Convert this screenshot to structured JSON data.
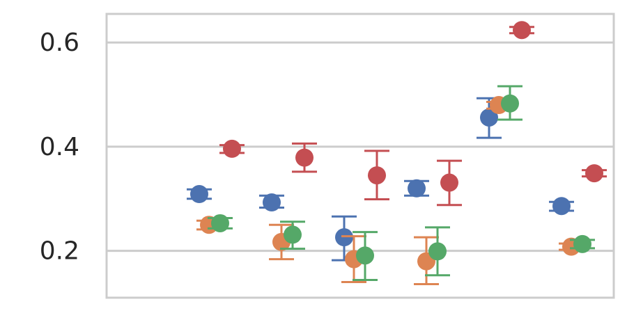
{
  "chart_data": {
    "type": "scatter",
    "subtype": "point-with-error-bars",
    "title": "",
    "xlabel": "",
    "ylabel": "",
    "ylim": [
      0.11,
      0.655
    ],
    "yticks": [
      0.2,
      0.4,
      0.6
    ],
    "ytick_labels": [
      "0.2",
      "0.4",
      "0.6"
    ],
    "grid": "horizontal",
    "legend": "none",
    "groups": 6,
    "series": [
      {
        "color": "#4c72b0",
        "points": [
          {
            "group": 0,
            "y": 0.309,
            "low": 0.3,
            "high": 0.318
          },
          {
            "group": 1,
            "y": 0.293,
            "low": 0.283,
            "high": 0.306
          },
          {
            "group": 2,
            "y": 0.226,
            "low": 0.182,
            "high": 0.266
          },
          {
            "group": 3,
            "y": 0.32,
            "low": 0.306,
            "high": 0.334
          },
          {
            "group": 4,
            "y": 0.456,
            "low": 0.417,
            "high": 0.493
          },
          {
            "group": 5,
            "y": 0.286,
            "low": 0.277,
            "high": 0.294
          }
        ]
      },
      {
        "color": "#dd8452",
        "points": [
          {
            "group": 0,
            "y": 0.25,
            "low": 0.241,
            "high": 0.258
          },
          {
            "group": 1,
            "y": 0.217,
            "low": 0.184,
            "high": 0.25
          },
          {
            "group": 2,
            "y": 0.184,
            "low": 0.14,
            "high": 0.228
          },
          {
            "group": 3,
            "y": 0.18,
            "low": 0.136,
            "high": 0.226
          },
          {
            "group": 4,
            "y": 0.48,
            "low": 0.473,
            "high": 0.486
          },
          {
            "group": 5,
            "y": 0.208,
            "low": 0.202,
            "high": 0.214
          }
        ]
      },
      {
        "color": "#55a868",
        "points": [
          {
            "group": 0,
            "y": 0.253,
            "low": 0.243,
            "high": 0.263
          },
          {
            "group": 1,
            "y": 0.231,
            "low": 0.204,
            "high": 0.256
          },
          {
            "group": 2,
            "y": 0.191,
            "low": 0.144,
            "high": 0.236
          },
          {
            "group": 3,
            "y": 0.199,
            "low": 0.153,
            "high": 0.245
          },
          {
            "group": 4,
            "y": 0.483,
            "low": 0.452,
            "high": 0.516
          },
          {
            "group": 5,
            "y": 0.213,
            "low": 0.205,
            "high": 0.221
          }
        ]
      },
      {
        "color": "#c44e52",
        "points": [
          {
            "group": 0,
            "y": 0.396,
            "low": 0.388,
            "high": 0.403
          },
          {
            "group": 1,
            "y": 0.379,
            "low": 0.352,
            "high": 0.406
          },
          {
            "group": 2,
            "y": 0.345,
            "low": 0.299,
            "high": 0.392
          },
          {
            "group": 3,
            "y": 0.331,
            "low": 0.288,
            "high": 0.373
          },
          {
            "group": 4,
            "y": 0.624,
            "low": 0.618,
            "high": 0.63
          },
          {
            "group": 5,
            "y": 0.349,
            "low": 0.343,
            "high": 0.355
          }
        ]
      }
    ]
  }
}
